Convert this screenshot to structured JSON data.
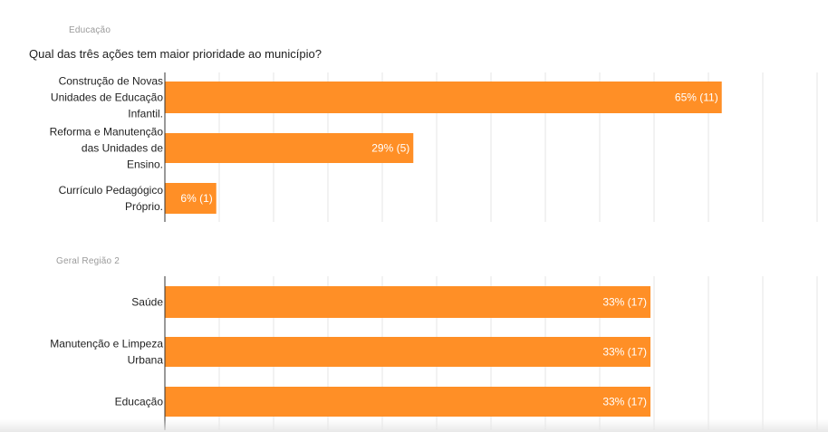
{
  "sections": [
    {
      "label": "Educação",
      "question": "Qual das três ações tem maior prioridade ao município?"
    },
    {
      "label": "Geral Região 2",
      "question": ""
    }
  ],
  "colors": {
    "bar": "#ff8f26",
    "grid": "#e6e6e6",
    "axis": "#333333"
  },
  "chart_data": [
    {
      "type": "bar",
      "orientation": "horizontal",
      "title": "Qual das três ações tem maior prioridade ao município?",
      "categories": [
        [
          "Construção de Novas",
          "Unidades de Educação",
          "Infantil."
        ],
        [
          "Reforma e Manutenção",
          "das Unidades de",
          "Ensino."
        ],
        [
          "Currículo Pedagógico",
          "Próprio."
        ]
      ],
      "values": [
        65,
        29,
        6
      ],
      "counts": [
        11,
        5,
        1
      ],
      "labels": [
        "65% (11)",
        "29% (5)",
        "6% (1)"
      ],
      "xlim": [
        0,
        70
      ],
      "grid": true
    },
    {
      "type": "bar",
      "orientation": "horizontal",
      "title": "",
      "categories": [
        [
          "Saúde"
        ],
        [
          "Manutenção e Limpeza",
          "Urbana"
        ],
        [
          "Educação"
        ]
      ],
      "values": [
        33,
        33,
        33
      ],
      "counts": [
        17,
        17,
        17
      ],
      "labels": [
        "33% (17)",
        "33% (17)",
        "33% (17)"
      ],
      "xlim": [
        0,
        37
      ],
      "grid": true
    }
  ]
}
